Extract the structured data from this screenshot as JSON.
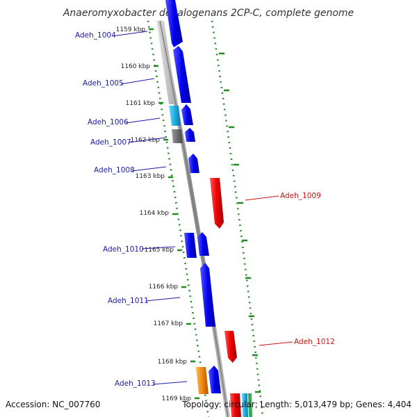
{
  "title": "Anaeromyxobacter dehalogenans 2CP-C, complete genome",
  "footer": {
    "accession": "Accession: NC_007760",
    "topology": "Topology: circular; Length: 5,013,479 bp; Genes: 4,404"
  },
  "colors": {
    "forward_cds": "#0000ee",
    "reverse_cds": "#ee0000",
    "light_blue_cds": "#22aadd",
    "orange_cds": "#ee8811",
    "gray_backbone": "#999999",
    "dotted_ring": "#1f8a1f"
  },
  "ticks": [
    "1159 kbp",
    "1160 kbp",
    "1161 kbp",
    "1162 kbp",
    "1163 kbp",
    "1164 kbp",
    "1165 kbp",
    "1166 kbp",
    "1167 kbp",
    "1168 kbp",
    "1169 kbp"
  ],
  "genes": [
    {
      "name": "Adeh_1004",
      "strand": "forward"
    },
    {
      "name": "Adeh_1005",
      "strand": "forward"
    },
    {
      "name": "Adeh_1006",
      "strand": "forward"
    },
    {
      "name": "Adeh_1007",
      "strand": "forward"
    },
    {
      "name": "Adeh_1008",
      "strand": "forward"
    },
    {
      "name": "Adeh_1009",
      "strand": "reverse"
    },
    {
      "name": "Adeh_1010",
      "strand": "forward"
    },
    {
      "name": "Adeh_1011",
      "strand": "forward"
    },
    {
      "name": "Adeh_1012",
      "strand": "reverse"
    },
    {
      "name": "Adeh_1013",
      "strand": "forward"
    }
  ]
}
